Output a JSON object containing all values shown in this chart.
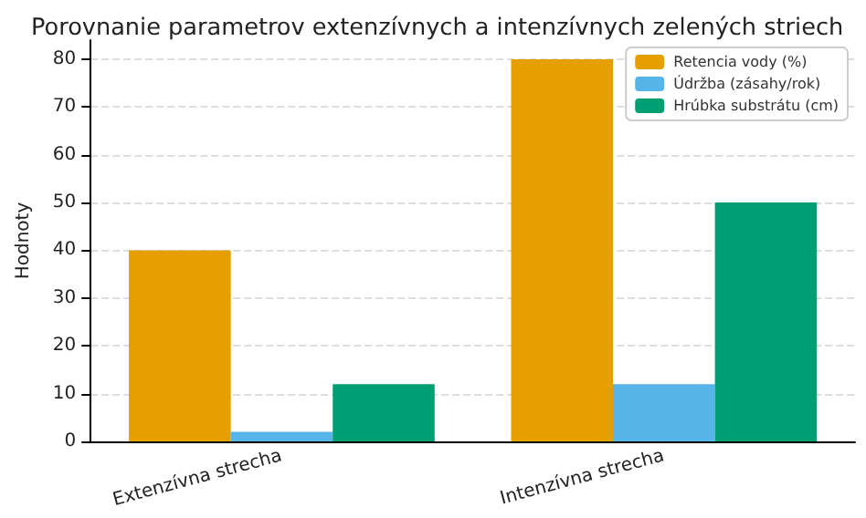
{
  "chart_data": {
    "type": "bar",
    "title": "Porovnanie parametrov extenzívnych a intenzívnych zelených striech",
    "categories": [
      "Extenzívna strecha",
      "Intenzívna strecha"
    ],
    "series": [
      {
        "name": "Retencia vody (%)",
        "color": "#e69f00",
        "values": [
          40,
          80
        ]
      },
      {
        "name": "Údržba (zásahy/rok)",
        "color": "#56b4e9",
        "values": [
          2,
          12
        ]
      },
      {
        "name": "Hrúbka substrátu (cm)",
        "color": "#009e73",
        "values": [
          12,
          50
        ]
      }
    ],
    "ylabel": "Hodnoty",
    "ylim": [
      0,
      84
    ],
    "yticks": [
      0,
      10,
      20,
      30,
      40,
      50,
      60,
      70,
      80
    ],
    "grid": "y",
    "legend": "top right"
  }
}
